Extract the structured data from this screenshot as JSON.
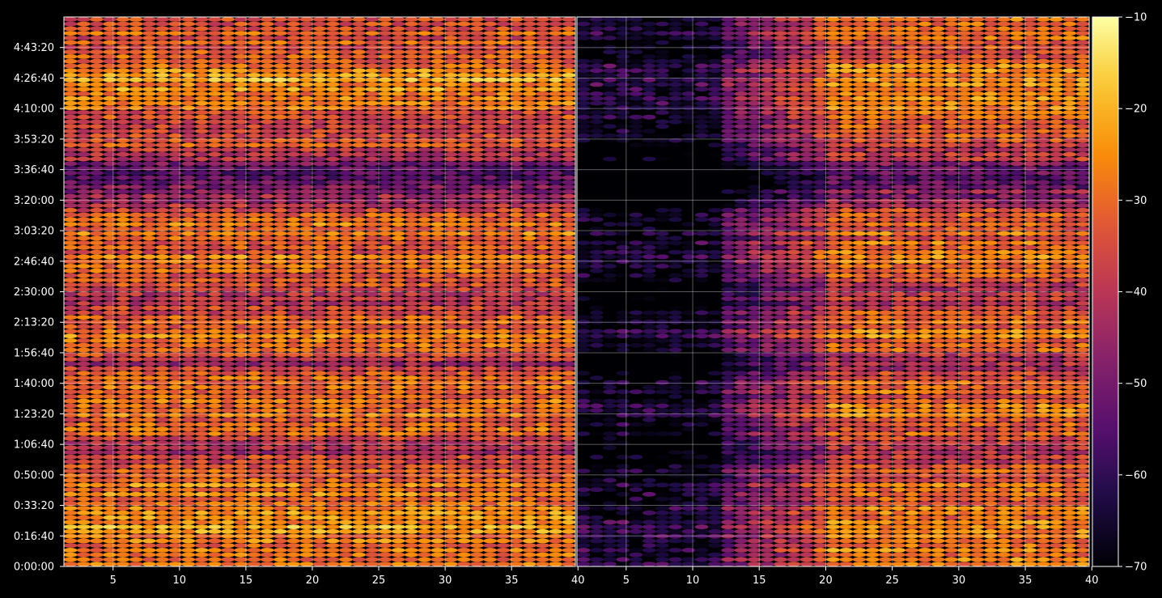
{
  "chart_data": {
    "type": "heatmap",
    "panels": [
      {
        "x_ticks": [
          "5",
          "10",
          "15",
          "20",
          "25",
          "30",
          "35",
          "40"
        ],
        "x_tick_values": [
          5,
          10,
          15,
          20,
          25,
          30,
          35,
          40
        ],
        "xlim": [
          1.3,
          39.8
        ],
        "profile": "full"
      },
      {
        "x_ticks": [
          "5",
          "10",
          "15",
          "20",
          "25",
          "30",
          "35",
          "40"
        ],
        "x_tick_values": [
          5,
          10,
          15,
          20,
          25,
          30,
          35,
          40
        ],
        "xlim": [
          1.3,
          39.8
        ],
        "profile": "ramp",
        "note": "low values for x < ~12, increasing toward x = 40"
      }
    ],
    "y_ticks": [
      "0:00:00",
      "0:16:40",
      "0:33:20",
      "0:50:00",
      "1:06:40",
      "1:23:20",
      "1:40:00",
      "1:56:40",
      "2:13:20",
      "2:30:00",
      "2:46:40",
      "3:03:20",
      "3:20:00",
      "3:36:40",
      "3:53:20",
      "4:10:00",
      "4:26:40",
      "4:43:20"
    ],
    "y_tick_seconds": [
      0,
      1000,
      2000,
      3000,
      4000,
      5000,
      6000,
      7000,
      8000,
      9000,
      10000,
      11000,
      12000,
      13000,
      14000,
      15000,
      16000,
      17000
    ],
    "ylim_seconds": [
      0,
      18000
    ],
    "rows": 118,
    "columns": 39,
    "colorbar": {
      "ticks": [
        "−70",
        "−60",
        "−50",
        "−40",
        "−30",
        "−20",
        "−10"
      ],
      "tick_values": [
        -70,
        -60,
        -50,
        -40,
        -30,
        -20,
        -10
      ],
      "range": [
        -70,
        -10
      ],
      "colormap": "inferno"
    },
    "grid": true,
    "background": "#000000",
    "level_by_row_seconds": [
      [
        0,
        -30
      ],
      [
        900,
        -27
      ],
      [
        1300,
        -25
      ],
      [
        2000,
        -30
      ],
      [
        2600,
        -28
      ],
      [
        3000,
        -32
      ],
      [
        3300,
        -38
      ],
      [
        3800,
        -40
      ],
      [
        4200,
        -35
      ],
      [
        5000,
        -28
      ],
      [
        5400,
        -30
      ],
      [
        6000,
        -32
      ],
      [
        6200,
        -30
      ],
      [
        6600,
        -42
      ],
      [
        7000,
        -34
      ],
      [
        7500,
        -28
      ],
      [
        8000,
        -30
      ],
      [
        8500,
        -40
      ],
      [
        9000,
        -38
      ],
      [
        9500,
        -36
      ],
      [
        10000,
        -28
      ],
      [
        10500,
        -32
      ],
      [
        11000,
        -30
      ],
      [
        11400,
        -28
      ],
      [
        12000,
        -44
      ],
      [
        12500,
        -50
      ],
      [
        13000,
        -54
      ],
      [
        13400,
        -40
      ],
      [
        14000,
        -34
      ],
      [
        14500,
        -36
      ],
      [
        15000,
        -30
      ],
      [
        15500,
        -26
      ],
      [
        16000,
        -24
      ],
      [
        16600,
        -32
      ],
      [
        17200,
        -34
      ],
      [
        17500,
        -30
      ],
      [
        18000,
        -32
      ]
    ]
  }
}
